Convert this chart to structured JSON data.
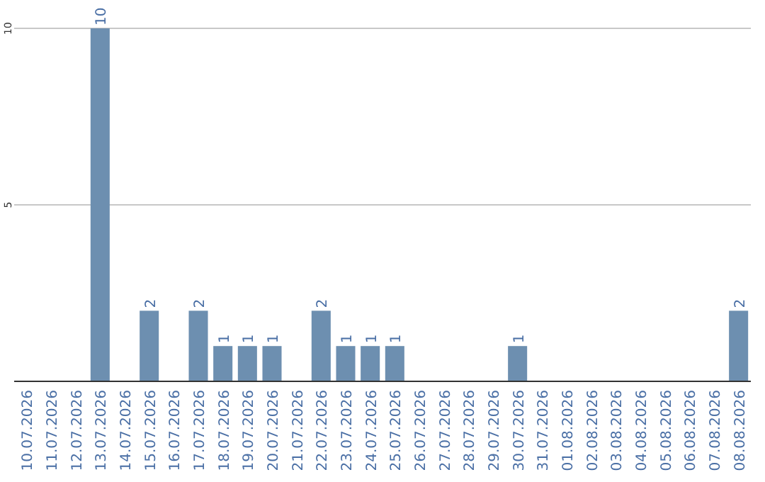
{
  "chart_data": {
    "type": "bar",
    "categories": [
      "10.07.2026",
      "11.07.2026",
      "12.07.2026",
      "13.07.2026",
      "14.07.2026",
      "15.07.2026",
      "16.07.2026",
      "17.07.2026",
      "18.07.2026",
      "19.07.2026",
      "20.07.2026",
      "21.07.2026",
      "22.07.2026",
      "23.07.2026",
      "24.07.2026",
      "25.07.2026",
      "26.07.2026",
      "27.07.2026",
      "28.07.2026",
      "29.07.2026",
      "30.07.2026",
      "31.07.2026",
      "01.08.2026",
      "02.08.2026",
      "03.08.2026",
      "04.08.2026",
      "05.08.2026",
      "06.08.2026",
      "07.08.2026",
      "08.08.2026"
    ],
    "values": [
      0,
      0,
      0,
      10,
      0,
      2,
      0,
      2,
      1,
      1,
      1,
      0,
      2,
      1,
      1,
      1,
      0,
      0,
      0,
      0,
      1,
      0,
      0,
      0,
      0,
      0,
      0,
      0,
      0,
      2
    ],
    "value_labels": [
      null,
      null,
      null,
      "10",
      null,
      "2",
      null,
      "2",
      "1",
      "1",
      "1",
      null,
      "2",
      "1",
      "1",
      "1",
      null,
      null,
      null,
      null,
      "1",
      null,
      null,
      null,
      null,
      null,
      null,
      null,
      null,
      "2"
    ],
    "color": "#6d8fb0",
    "ylim": [
      0,
      10
    ],
    "yticks": [
      5,
      10
    ],
    "grid": "y"
  }
}
